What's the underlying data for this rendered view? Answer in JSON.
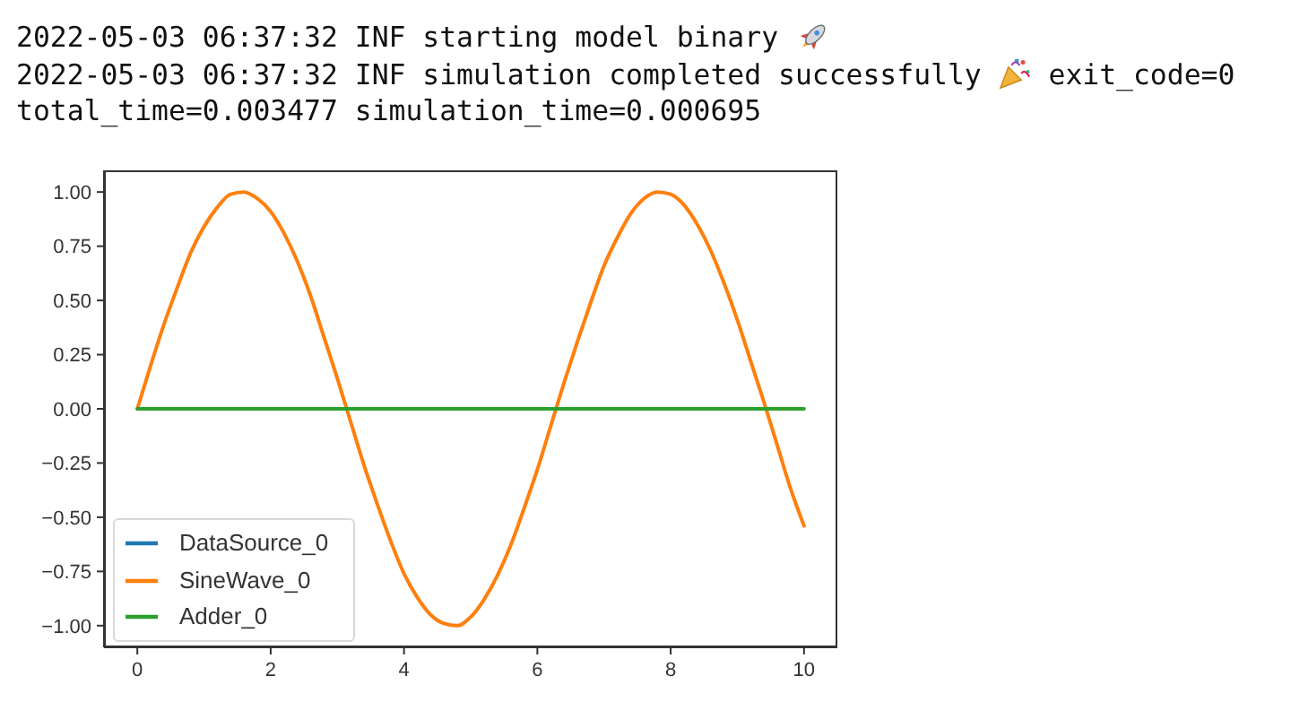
{
  "chart_data": {
    "type": "line",
    "annotations": [
      "2022-05-03 06:37:32 INF starting model binary",
      "2022-05-03 06:37:32 INF simulation completed successfully",
      "exit_code=0",
      "total_time=0.003477 simulation_time=0.000695"
    ],
    "x": [
      0,
      0.2,
      0.4,
      0.6,
      0.8,
      1.0,
      1.2,
      1.4,
      1.6,
      1.8,
      2.0,
      2.2,
      2.4,
      2.6,
      2.8,
      3.0,
      3.2,
      3.4,
      3.6,
      3.8,
      4.0,
      4.2,
      4.4,
      4.6,
      4.8,
      5.0,
      5.2,
      5.4,
      5.6,
      5.8,
      6.0,
      6.2,
      6.4,
      6.6,
      6.8,
      7.0,
      7.2,
      7.4,
      7.6,
      7.8,
      8.0,
      8.2,
      8.4,
      8.6,
      8.8,
      9.0,
      9.2,
      9.4,
      9.6,
      9.8,
      10.0
    ],
    "series": [
      {
        "name": "DataSource_0",
        "color": "#1f77b4",
        "values": [
          null,
          null,
          null,
          null,
          null,
          null,
          null,
          null,
          null,
          null,
          null,
          null,
          null,
          null,
          null,
          null,
          null,
          null,
          null,
          null,
          null,
          null,
          null,
          null,
          null,
          null,
          null,
          null,
          null,
          null,
          null,
          null,
          null,
          null,
          null,
          null,
          null,
          null,
          null,
          null,
          null,
          null,
          null,
          null,
          null,
          null,
          null,
          null,
          null,
          null,
          null
        ]
      },
      {
        "name": "SineWave_0",
        "color": "#ff7f0e",
        "values": [
          0,
          0.2,
          0.39,
          0.56,
          0.72,
          0.84,
          0.93,
          0.99,
          1.0,
          0.97,
          0.91,
          0.81,
          0.68,
          0.52,
          0.33,
          0.14,
          -0.06,
          -0.26,
          -0.44,
          -0.61,
          -0.76,
          -0.87,
          -0.95,
          -0.99,
          -1.0,
          -0.96,
          -0.88,
          -0.77,
          -0.63,
          -0.46,
          -0.28,
          -0.08,
          0.12,
          0.31,
          0.49,
          0.66,
          0.79,
          0.9,
          0.97,
          1.0,
          0.99,
          0.94,
          0.85,
          0.73,
          0.58,
          0.41,
          0.22,
          0.03,
          -0.17,
          -0.37,
          -0.54
        ]
      },
      {
        "name": "Adder_0",
        "color": "#2ca02c",
        "x": [
          0,
          10
        ],
        "values": [
          0,
          0
        ]
      }
    ],
    "xlim": [
      -0.5,
      10.5
    ],
    "xticks": [
      0,
      2,
      4,
      6,
      8,
      10
    ],
    "ylim": [
      -1.1,
      1.1
    ],
    "yticks": [
      {
        "value": -1,
        "label": "−1.00"
      },
      {
        "value": -0.75,
        "label": "−0.75"
      },
      {
        "value": -0.5,
        "label": "−0.50"
      },
      {
        "value": -0.25,
        "label": "−0.25"
      },
      {
        "value": 0,
        "label": "0.00"
      },
      {
        "value": 0.25,
        "label": "0.25"
      },
      {
        "value": 0.5,
        "label": "0.50"
      },
      {
        "value": 0.75,
        "label": "0.75"
      },
      {
        "value": 1,
        "label": "1.00"
      }
    ],
    "legend": "bottom left"
  }
}
